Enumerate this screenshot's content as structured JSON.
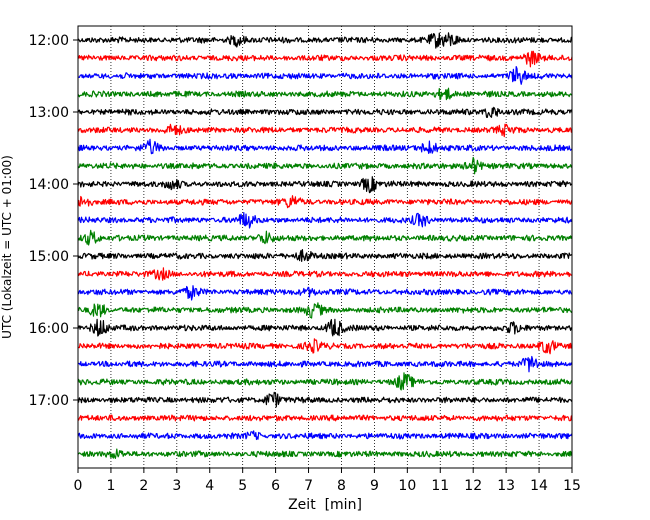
{
  "chart_data": {
    "type": "line",
    "subtype": "helicorder",
    "title": "",
    "xlabel": "Zeit  [min]",
    "ylabel": "UTC (Lokalzeit = UTC + 01:00)",
    "xlim": [
      0,
      15
    ],
    "x_ticks": [
      "0",
      "1",
      "2",
      "3",
      "4",
      "5",
      "6",
      "7",
      "8",
      "9",
      "10",
      "11",
      "12",
      "13",
      "14",
      "15"
    ],
    "y_ticks": [
      "12:00",
      "13:00",
      "14:00",
      "15:00",
      "16:00",
      "17:00"
    ],
    "grid": "vertical-dotted",
    "trace_colors": [
      "#000000",
      "#ff0000",
      "#0000ff",
      "#008000"
    ],
    "traces_per_hour": 4,
    "trace_count": 24,
    "events": [
      {
        "trace": 0,
        "x": 4.85,
        "amp": 0.6
      },
      {
        "trace": 0,
        "x": 10.9,
        "amp": 0.7
      },
      {
        "trace": 0,
        "x": 11.3,
        "amp": 0.6
      },
      {
        "trace": 1,
        "x": 13.75,
        "amp": 0.8
      },
      {
        "trace": 2,
        "x": 13.35,
        "amp": 0.9
      },
      {
        "trace": 3,
        "x": 11.15,
        "amp": 0.7
      },
      {
        "trace": 4,
        "x": 12.55,
        "amp": 0.6
      },
      {
        "trace": 5,
        "x": 2.9,
        "amp": 0.5
      },
      {
        "trace": 5,
        "x": 13.0,
        "amp": 0.5
      },
      {
        "trace": 6,
        "x": 2.2,
        "amp": 0.7
      },
      {
        "trace": 6,
        "x": 10.65,
        "amp": 0.7
      },
      {
        "trace": 7,
        "x": 12.0,
        "amp": 0.8
      },
      {
        "trace": 8,
        "x": 8.85,
        "amp": 0.8
      },
      {
        "trace": 8,
        "x": 2.9,
        "amp": 0.5
      },
      {
        "trace": 9,
        "x": 0.15,
        "amp": 0.6
      },
      {
        "trace": 9,
        "x": 6.5,
        "amp": 0.6
      },
      {
        "trace": 10,
        "x": 5.1,
        "amp": 0.8
      },
      {
        "trace": 10,
        "x": 10.4,
        "amp": 0.6
      },
      {
        "trace": 11,
        "x": 0.4,
        "amp": 0.7
      },
      {
        "trace": 11,
        "x": 5.7,
        "amp": 0.6
      },
      {
        "trace": 12,
        "x": 6.85,
        "amp": 0.6
      },
      {
        "trace": 13,
        "x": 2.55,
        "amp": 0.5
      },
      {
        "trace": 14,
        "x": 3.45,
        "amp": 0.6
      },
      {
        "trace": 14,
        "x": 7.0,
        "amp": 0.4
      },
      {
        "trace": 15,
        "x": 0.6,
        "amp": 0.7
      },
      {
        "trace": 15,
        "x": 7.15,
        "amp": 0.8
      },
      {
        "trace": 16,
        "x": 0.65,
        "amp": 0.9
      },
      {
        "trace": 16,
        "x": 7.8,
        "amp": 1.0
      },
      {
        "trace": 16,
        "x": 13.2,
        "amp": 0.5
      },
      {
        "trace": 17,
        "x": 7.15,
        "amp": 0.6
      },
      {
        "trace": 17,
        "x": 14.25,
        "amp": 0.7
      },
      {
        "trace": 18,
        "x": 13.75,
        "amp": 0.8
      },
      {
        "trace": 19,
        "x": 9.9,
        "amp": 0.9
      },
      {
        "trace": 20,
        "x": 5.9,
        "amp": 0.8
      },
      {
        "trace": 22,
        "x": 5.3,
        "amp": 0.3
      },
      {
        "trace": 23,
        "x": 1.15,
        "amp": 0.3
      }
    ]
  }
}
